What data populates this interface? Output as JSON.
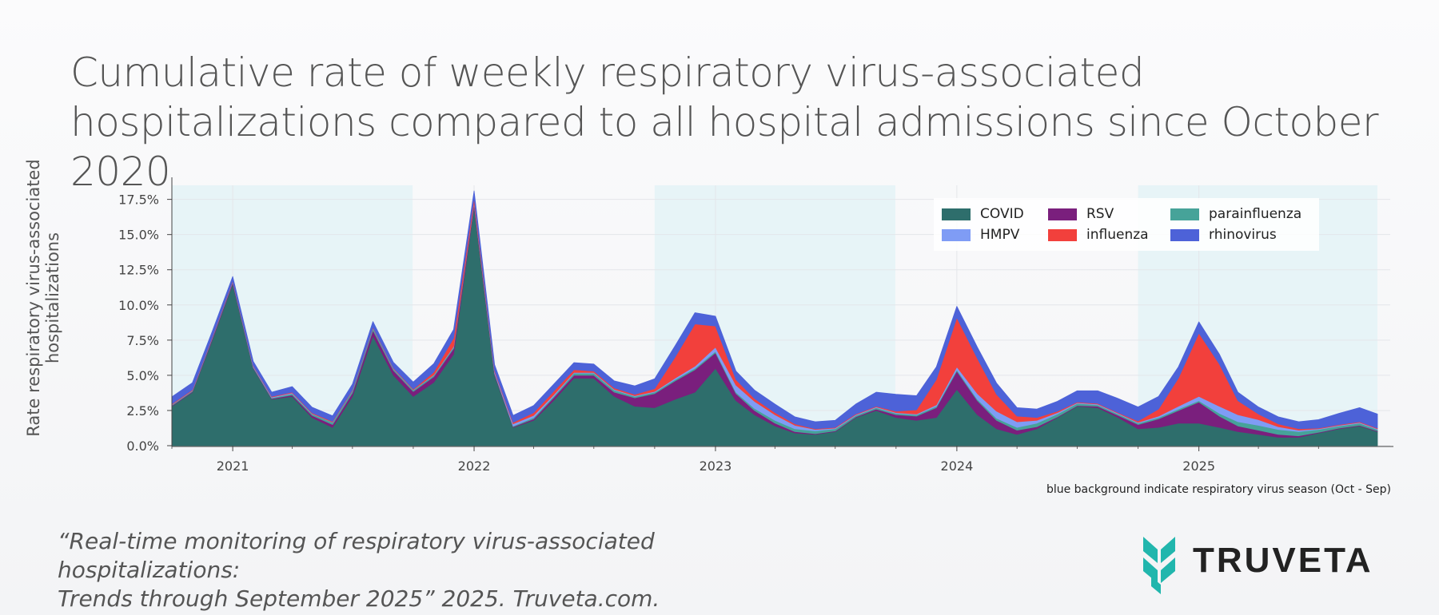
{
  "title": "Cumulative rate of weekly respiratory virus-associated hospitalizations compared to all hospital admissions since October 2020",
  "footnote": "blue background indicate respiratory virus season (Oct - Sep)",
  "citation_line1": "“Real-time monitoring of respiratory virus-associated hospitalizations:",
  "citation_line2": "Trends through September 2025” 2025. Truveta.com.",
  "brand": "TRUVETA",
  "colors": {
    "COVID": "#2e6e6c",
    "HMPV": "#7f9cf5",
    "RSV": "#7a1f7d",
    "influenza": "#f2403c",
    "parainfluenza": "#46a399",
    "rhinovirus": "#4d62d8",
    "season": "#e7f4f7",
    "logo": "#21b6ad"
  },
  "chart_data": {
    "type": "area",
    "stacked": true,
    "title": "",
    "xlabel": "",
    "ylabel": "Rate respiratory virus-associated hospitalizations",
    "ylim": [
      0,
      18.5
    ],
    "x_range": [
      "2020-10-01",
      "2025-09-28"
    ],
    "y_ticks": [
      "0.0%",
      "2.5%",
      "5.0%",
      "7.5%",
      "10.0%",
      "12.5%",
      "15.0%",
      "17.5%"
    ],
    "x_ticks": [
      "2021",
      "2022",
      "2023",
      "2024",
      "2025"
    ],
    "legend": [
      "COVID",
      "RSV",
      "parainfluenza",
      "HMPV",
      "influenza",
      "rhinovirus"
    ],
    "legend_position": "top-right",
    "grid": true,
    "season_shading": [
      [
        "2020-10-01",
        "2021-09-30"
      ],
      [
        "2022-10-01",
        "2023-09-30"
      ],
      [
        "2024-10-01",
        "2025-09-28"
      ]
    ],
    "dates": [
      "2020-10-01",
      "2020-11-01",
      "2020-12-01",
      "2021-01-01",
      "2021-02-01",
      "2021-03-01",
      "2021-04-01",
      "2021-05-01",
      "2021-06-01",
      "2021-07-01",
      "2021-08-01",
      "2021-09-01",
      "2021-10-01",
      "2021-11-01",
      "2021-12-01",
      "2022-01-01",
      "2022-02-01",
      "2022-03-01",
      "2022-04-01",
      "2022-05-01",
      "2022-06-01",
      "2022-07-01",
      "2022-08-01",
      "2022-09-01",
      "2022-10-01",
      "2022-11-01",
      "2022-12-01",
      "2023-01-01",
      "2023-02-01",
      "2023-03-01",
      "2023-04-01",
      "2023-05-01",
      "2023-06-01",
      "2023-07-01",
      "2023-08-01",
      "2023-09-01",
      "2023-10-01",
      "2023-11-01",
      "2023-12-01",
      "2024-01-01",
      "2024-02-01",
      "2024-03-01",
      "2024-04-01",
      "2024-05-01",
      "2024-06-01",
      "2024-07-01",
      "2024-08-01",
      "2024-09-01",
      "2024-10-01",
      "2024-11-01",
      "2024-12-01",
      "2025-01-01",
      "2025-02-01",
      "2025-03-01",
      "2025-04-01",
      "2025-05-01",
      "2025-06-01",
      "2025-07-01",
      "2025-08-01",
      "2025-09-01",
      "2025-09-28"
    ],
    "series": [
      {
        "name": "COVID",
        "values": [
          2.8,
          3.8,
          7.5,
          11.5,
          5.5,
          3.3,
          3.5,
          2.0,
          1.3,
          3.5,
          7.8,
          5.0,
          3.5,
          4.5,
          6.5,
          17.0,
          5.0,
          1.3,
          1.8,
          3.2,
          4.8,
          4.8,
          3.5,
          2.8,
          2.7,
          3.3,
          3.8,
          5.5,
          3.2,
          2.2,
          1.4,
          0.9,
          0.8,
          1.0,
          2.0,
          2.5,
          2.0,
          1.8,
          2.0,
          4.0,
          2.2,
          1.2,
          0.8,
          1.2,
          2.0,
          2.8,
          2.7,
          2.0,
          1.2,
          1.3,
          1.6,
          1.6,
          1.3,
          1.0,
          0.8,
          0.6,
          0.6,
          0.9,
          1.2,
          1.4,
          1.0
        ]
      },
      {
        "name": "RSV",
        "values": [
          0.05,
          0.05,
          0.1,
          0.1,
          0.05,
          0.05,
          0.1,
          0.15,
          0.2,
          0.25,
          0.4,
          0.35,
          0.35,
          0.4,
          0.4,
          0.2,
          0.1,
          0.05,
          0.1,
          0.2,
          0.2,
          0.2,
          0.3,
          0.6,
          1.0,
          1.3,
          1.6,
          1.1,
          0.5,
          0.3,
          0.2,
          0.1,
          0.05,
          0.05,
          0.05,
          0.1,
          0.2,
          0.3,
          0.7,
          1.3,
          1.0,
          0.6,
          0.3,
          0.15,
          0.05,
          0.05,
          0.1,
          0.15,
          0.3,
          0.6,
          0.9,
          1.5,
          0.8,
          0.4,
          0.3,
          0.2,
          0.1,
          0.05,
          0.05,
          0.05,
          0.05
        ]
      },
      {
        "name": "parainfluenza",
        "values": [
          0.05,
          0.05,
          0.05,
          0.05,
          0.05,
          0.05,
          0.1,
          0.1,
          0.15,
          0.15,
          0.15,
          0.1,
          0.1,
          0.1,
          0.1,
          0.05,
          0.05,
          0.05,
          0.1,
          0.1,
          0.15,
          0.15,
          0.15,
          0.1,
          0.1,
          0.1,
          0.1,
          0.1,
          0.1,
          0.15,
          0.2,
          0.2,
          0.2,
          0.15,
          0.1,
          0.1,
          0.1,
          0.1,
          0.1,
          0.1,
          0.1,
          0.15,
          0.2,
          0.25,
          0.2,
          0.15,
          0.1,
          0.1,
          0.1,
          0.1,
          0.1,
          0.1,
          0.2,
          0.3,
          0.35,
          0.35,
          0.3,
          0.2,
          0.15,
          0.15,
          0.1
        ]
      },
      {
        "name": "HMPV",
        "values": [
          0.02,
          0.02,
          0.02,
          0.02,
          0.05,
          0.05,
          0.05,
          0.03,
          0.02,
          0.02,
          0.02,
          0.02,
          0.02,
          0.03,
          0.05,
          0.05,
          0.1,
          0.15,
          0.15,
          0.1,
          0.05,
          0.05,
          0.05,
          0.05,
          0.05,
          0.1,
          0.15,
          0.3,
          0.5,
          0.5,
          0.4,
          0.25,
          0.1,
          0.05,
          0.05,
          0.05,
          0.05,
          0.05,
          0.1,
          0.2,
          0.4,
          0.5,
          0.4,
          0.2,
          0.1,
          0.05,
          0.05,
          0.05,
          0.05,
          0.1,
          0.2,
          0.3,
          0.5,
          0.5,
          0.4,
          0.2,
          0.1,
          0.05,
          0.05,
          0.05,
          0.05
        ]
      },
      {
        "name": "influenza",
        "values": [
          0.05,
          0.05,
          0.05,
          0.05,
          0.05,
          0.05,
          0.05,
          0.05,
          0.05,
          0.05,
          0.05,
          0.05,
          0.05,
          0.2,
          0.6,
          0.3,
          0.1,
          0.1,
          0.2,
          0.25,
          0.2,
          0.1,
          0.1,
          0.1,
          0.2,
          1.5,
          3.0,
          1.5,
          0.4,
          0.2,
          0.15,
          0.1,
          0.05,
          0.05,
          0.05,
          0.05,
          0.1,
          0.3,
          1.8,
          3.5,
          2.5,
          1.2,
          0.4,
          0.2,
          0.1,
          0.05,
          0.05,
          0.05,
          0.1,
          0.5,
          2.0,
          4.5,
          3.0,
          1.0,
          0.4,
          0.2,
          0.1,
          0.05,
          0.05,
          0.05,
          0.05
        ]
      },
      {
        "name": "rhinovirus",
        "values": [
          0.5,
          0.5,
          0.4,
          0.3,
          0.3,
          0.3,
          0.4,
          0.4,
          0.4,
          0.4,
          0.4,
          0.4,
          0.5,
          0.6,
          0.6,
          0.5,
          0.4,
          0.5,
          0.5,
          0.5,
          0.5,
          0.5,
          0.5,
          0.6,
          0.7,
          0.8,
          0.8,
          0.7,
          0.6,
          0.6,
          0.6,
          0.5,
          0.5,
          0.5,
          0.7,
          1.0,
          1.2,
          1.0,
          0.9,
          0.8,
          0.8,
          0.8,
          0.6,
          0.6,
          0.7,
          0.8,
          0.9,
          1.0,
          1.0,
          0.9,
          0.8,
          0.8,
          0.7,
          0.6,
          0.5,
          0.5,
          0.5,
          0.6,
          0.8,
          1.0,
          1.0
        ]
      }
    ]
  }
}
